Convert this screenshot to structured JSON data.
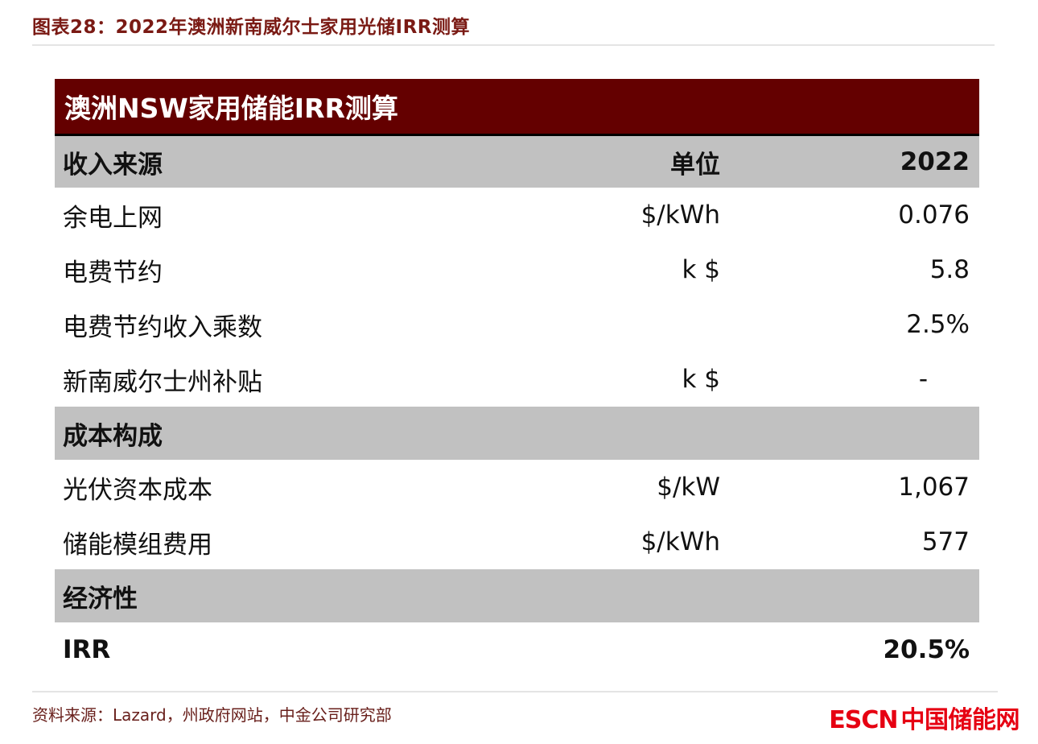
{
  "figure": {
    "caption": "图表28：2022年澳洲新南威尔士家用光储IRR测算"
  },
  "chart_data": {
    "type": "table",
    "title": "澳洲NSW家用储能IRR测算",
    "columns": [
      "收入来源",
      "单位",
      "2022"
    ],
    "sections": [
      {
        "name": "收入来源",
        "rows": [
          [
            "余电上网",
            "$/kWh",
            "0.076"
          ],
          [
            "电费节约",
            "k $",
            "5.8"
          ],
          [
            "电费节约收入乘数",
            "",
            "2.5%"
          ],
          [
            "新南威尔士州补贴",
            "k $",
            "-"
          ]
        ]
      },
      {
        "name": "成本构成",
        "rows": [
          [
            "光伏资本成本",
            "$/kW",
            "1,067"
          ],
          [
            "储能模组费用",
            "$/kWh",
            "577"
          ]
        ]
      },
      {
        "name": "经济性",
        "rows": [
          [
            "IRR",
            "",
            "20.5%"
          ]
        ]
      }
    ]
  },
  "footer": {
    "source": "资料来源：Lazard，州政府网站，中金公司研究部"
  },
  "logo": {
    "en": "ESCN",
    "cn": "中国储能网"
  },
  "colors": {
    "header_band": "#640000",
    "section_band": "#c1c1c1",
    "caption_red": "#7a1a14",
    "source_red": "#69201c",
    "logo_red": "#e60012",
    "rule_gray": "#e4e4e4",
    "divider_black": "#000000"
  }
}
